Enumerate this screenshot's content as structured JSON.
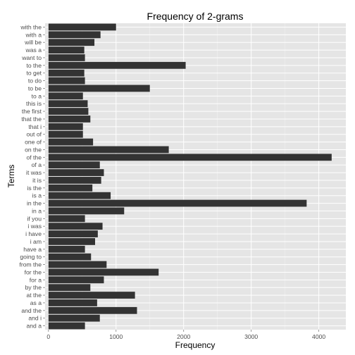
{
  "chart_data": {
    "type": "bar",
    "orientation": "horizontal",
    "title": "Frequency of 2-grams",
    "xlabel": "Frequency",
    "ylabel": "Terms",
    "xlim": [
      -50,
      4400
    ],
    "xticks": [
      0,
      1000,
      2000,
      3000,
      4000
    ],
    "grid": true,
    "legend": "none",
    "colors": {
      "panel": "#e5e5e5",
      "bar": "#333333",
      "grid_major": "#ffffff",
      "grid_minor": "#f2f2f2"
    },
    "categories": [
      "with the",
      "with a",
      "will be",
      "was a",
      "want to",
      "to the",
      "to get",
      "to do",
      "to be",
      "to a",
      "this is",
      "the first",
      "that the",
      "that i",
      "out of",
      "one of",
      "on the",
      "of the",
      "of a",
      "it was",
      "it is",
      "is the",
      "is a",
      "in the",
      "in a",
      "if you",
      "i was",
      "i have",
      "i am",
      "have a",
      "going to",
      "from the",
      "for the",
      "for a",
      "by the",
      "at the",
      "as a",
      "and the",
      "and i",
      "and a"
    ],
    "values": [
      1000,
      770,
      680,
      530,
      540,
      2030,
      530,
      540,
      1500,
      510,
      580,
      590,
      620,
      510,
      510,
      660,
      1780,
      4190,
      760,
      820,
      780,
      650,
      920,
      3820,
      1120,
      540,
      800,
      730,
      690,
      540,
      630,
      860,
      1630,
      820,
      620,
      1280,
      720,
      1310,
      760,
      540
    ]
  }
}
